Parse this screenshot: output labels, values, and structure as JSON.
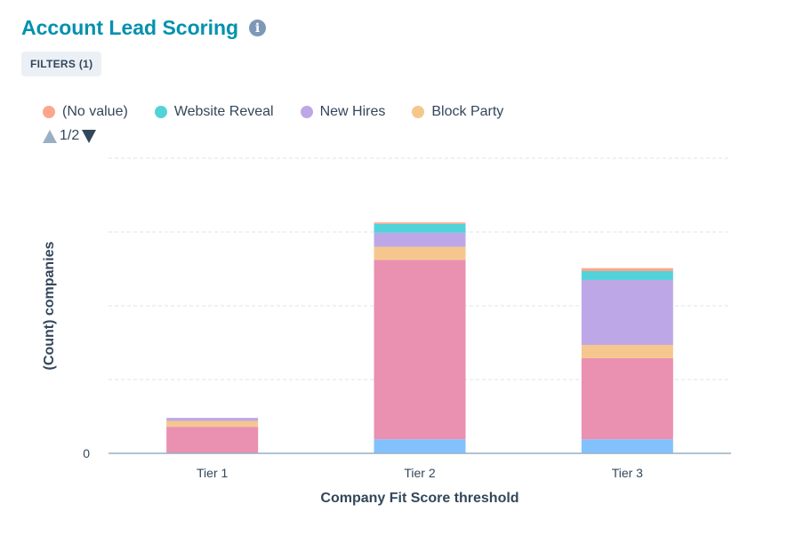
{
  "header": {
    "title": "Account Lead Scoring",
    "info_icon": "info-icon",
    "filters_label": "FILTERS (1)"
  },
  "legend": {
    "items": [
      {
        "label": "(No value)",
        "color": "#fea58e"
      },
      {
        "label": "Website Reveal",
        "color": "#51d3d9"
      },
      {
        "label": "New Hires",
        "color": "#bea7e6"
      },
      {
        "label": "Block Party",
        "color": "#f5c78e"
      }
    ],
    "page": "1/2"
  },
  "chart_data": {
    "type": "bar",
    "stacked": true,
    "xlabel": "Company Fit Score threshold",
    "ylabel": "(Count) companies",
    "categories": [
      "Tier 1",
      "Tier 2",
      "Tier 3"
    ],
    "y_tick_labels": [
      "0"
    ],
    "ylim": [
      0,
      4
    ],
    "grid": true,
    "legend_placement": "top-left",
    "series": [
      {
        "color": "#81c1fd",
        "values": [
          0,
          0.19,
          0.19
        ]
      },
      {
        "color": "#ea90b1",
        "values": [
          0.36,
          2.43,
          1.1
        ]
      },
      {
        "name": "Block Party",
        "color": "#f5c78e",
        "values": [
          0.08,
          0.18,
          0.18
        ]
      },
      {
        "name": "New Hires",
        "color": "#bea7e6",
        "values": [
          0.04,
          0.19,
          0.88
        ]
      },
      {
        "name": "Website Reveal",
        "color": "#51d3d9",
        "values": [
          0,
          0.12,
          0.12
        ]
      },
      {
        "name": "(No value)",
        "color": "#fea58e",
        "values": [
          0,
          0.02,
          0.04
        ]
      }
    ]
  }
}
